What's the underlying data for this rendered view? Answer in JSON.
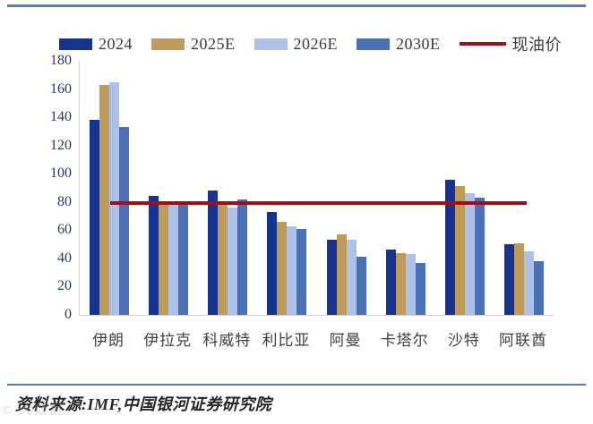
{
  "legend": {
    "items": [
      {
        "label": "2024",
        "color": "#16338E",
        "type": "swatch"
      },
      {
        "label": "2025E",
        "color": "#BF9B59",
        "type": "swatch"
      },
      {
        "label": "2026E",
        "color": "#AEC2E7",
        "type": "swatch"
      },
      {
        "label": "2030E",
        "color": "#4A70B8",
        "type": "swatch"
      },
      {
        "label": "现油价",
        "color": "#9C1016",
        "type": "line"
      }
    ]
  },
  "chart_data": {
    "type": "bar",
    "categories": [
      "伊朗",
      "伊拉克",
      "科威特",
      "利比亚",
      "阿曼",
      "卡塔尔",
      "沙特",
      "阿联酋"
    ],
    "series": [
      {
        "name": "2024",
        "color": "#16338E",
        "values": [
          138,
          84,
          88,
          73,
          53,
          46,
          96,
          50
        ]
      },
      {
        "name": "2025E",
        "color": "#BF9B59",
        "values": [
          163,
          78,
          79,
          66,
          57,
          44,
          91,
          51
        ]
      },
      {
        "name": "2026E",
        "color": "#AEC2E7",
        "values": [
          165,
          78,
          76,
          63,
          53,
          43,
          86,
          45
        ]
      },
      {
        "name": "2030E",
        "color": "#4A70B8",
        "values": [
          133,
          78,
          82,
          61,
          41,
          37,
          83,
          38
        ]
      }
    ],
    "ref_line": {
      "label": "现油价",
      "value": 79,
      "color": "#9C1016"
    },
    "title": "",
    "xlabel": "",
    "ylabel": "",
    "ylim": [
      0,
      180
    ],
    "ytick_step": 20,
    "grid": false,
    "legend_position": "top"
  },
  "footer": {
    "source": "资料来源:IMF,中国银河证券研究院",
    "watermark": "© 大数据"
  },
  "colors": {
    "separator": "#5D7BB4",
    "axis": "#D6D6D6",
    "ytick_text": "#1F3864",
    "xtick_text": "#404040"
  }
}
